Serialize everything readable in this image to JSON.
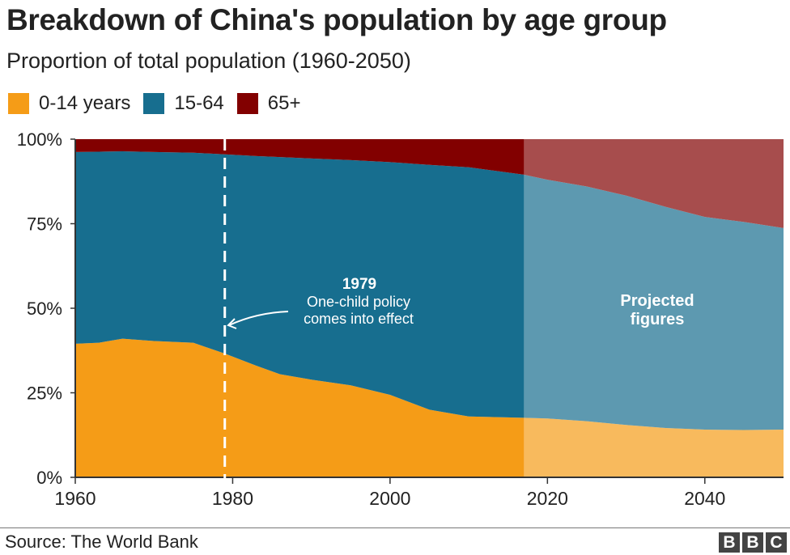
{
  "title": "Breakdown of China's population by age group",
  "subtitle": "Proportion of total population (1960-2050)",
  "source": "Source: The World Bank",
  "logo": "BBC",
  "chart_data": {
    "type": "area",
    "stacked": true,
    "xlim": [
      1960,
      2050
    ],
    "ylim": [
      0,
      100
    ],
    "x_ticks": [
      1960,
      1980,
      2000,
      2020,
      2040
    ],
    "y_ticks": [
      {
        "v": 0,
        "label": "0%"
      },
      {
        "v": 25,
        "label": "25%"
      },
      {
        "v": 50,
        "label": "50%"
      },
      {
        "v": 75,
        "label": "75%"
      },
      {
        "v": 100,
        "label": "100%"
      }
    ],
    "legend_position": "top-left",
    "grid": false,
    "x": [
      1960,
      1963,
      1966,
      1970,
      1975,
      1979,
      1983,
      1986,
      1990,
      1995,
      2000,
      2005,
      2010,
      2017,
      2020,
      2025,
      2030,
      2035,
      2040,
      2045,
      2050
    ],
    "series": [
      {
        "name": "0-14 years",
        "color": "#f59c17",
        "values": [
          39.5,
          39.8,
          41.0,
          40.3,
          39.8,
          36.6,
          33.0,
          30.5,
          28.9,
          27.2,
          24.4,
          20.0,
          18.0,
          17.6,
          17.4,
          16.6,
          15.5,
          14.6,
          14.1,
          14.0,
          14.1
        ]
      },
      {
        "name": "15-64",
        "color": "#176e8f",
        "values": [
          56.7,
          56.5,
          55.4,
          55.9,
          56.2,
          58.9,
          62.0,
          64.2,
          65.4,
          66.6,
          68.8,
          72.4,
          73.7,
          71.9,
          70.6,
          69.4,
          67.8,
          65.4,
          62.9,
          61.5,
          59.6
        ]
      },
      {
        "name": "65+",
        "color": "#820000",
        "values": [
          3.8,
          3.7,
          3.6,
          3.8,
          4.0,
          4.5,
          5.0,
          5.3,
          5.7,
          6.2,
          6.8,
          7.6,
          8.3,
          10.5,
          12.0,
          14.0,
          16.7,
          20.0,
          23.0,
          24.5,
          26.3
        ]
      }
    ],
    "projection_start": 2017,
    "projection_label": "Projected figures",
    "annotation": {
      "year": 1979,
      "title": "1979",
      "line1": "One-child policy",
      "line2": "comes into effect"
    }
  }
}
